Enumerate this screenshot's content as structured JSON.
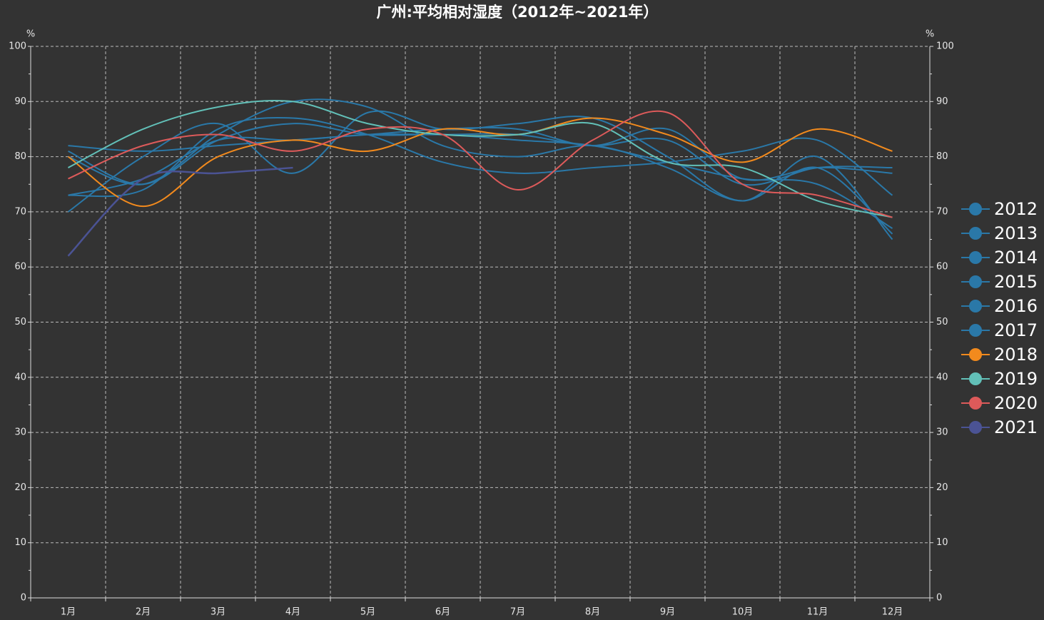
{
  "chart_data": {
    "type": "line",
    "title": "广州:平均相对湿度（2012年~2021年）",
    "categories": [
      "1月",
      "2月",
      "3月",
      "4月",
      "5月",
      "6月",
      "7月",
      "8月",
      "9月",
      "10月",
      "11月",
      "12月"
    ],
    "yname": "%",
    "y2name": "%",
    "ylim": [
      0,
      100
    ],
    "yticks": [
      0,
      10,
      20,
      30,
      40,
      50,
      60,
      70,
      80,
      90,
      100
    ],
    "y2lim": [
      0,
      100
    ],
    "y2ticks": [
      0,
      10,
      20,
      30,
      40,
      50,
      60,
      70,
      80,
      90,
      100
    ],
    "grid": true,
    "legend": "right",
    "smooth": true,
    "series": [
      {
        "name": "2012",
        "color": "#2a78a8",
        "values": [
          82,
          81,
          82,
          83,
          84,
          85,
          85,
          82,
          85,
          76,
          78,
          77
        ]
      },
      {
        "name": "2013",
        "color": "#2a78a8",
        "values": [
          80,
          75,
          84,
          90,
          89,
          82,
          80,
          82,
          78,
          72,
          78,
          66
        ]
      },
      {
        "name": "2014",
        "color": "#2a78a8",
        "values": [
          73,
          74,
          85,
          87,
          84,
          79,
          77,
          78,
          79,
          81,
          83,
          73
        ]
      },
      {
        "name": "2015",
        "color": "#2a78a8",
        "values": [
          70,
          80,
          86,
          77,
          88,
          85,
          86,
          87,
          80,
          72,
          80,
          65
        ]
      },
      {
        "name": "2016",
        "color": "#2a78a8",
        "values": [
          81,
          75,
          83,
          86,
          84,
          84,
          83,
          82,
          79,
          76,
          75,
          67
        ]
      },
      {
        "name": "2017",
        "color": "#2a78a8",
        "values": [
          73,
          76,
          83,
          83,
          84,
          84,
          84,
          82,
          83,
          75,
          78,
          78
        ]
      },
      {
        "name": "2018",
        "color": "#f28a1d",
        "values": [
          80,
          71,
          80,
          83,
          81,
          85,
          84,
          87,
          84,
          79,
          85,
          81
        ]
      },
      {
        "name": "2019",
        "color": "#62c0b8",
        "values": [
          78,
          85,
          89,
          90,
          86,
          84,
          84,
          86,
          79,
          78,
          72,
          69
        ]
      },
      {
        "name": "2020",
        "color": "#dd5a5a",
        "values": [
          76,
          82,
          84,
          81,
          85,
          84,
          74,
          83,
          88,
          75,
          73,
          69
        ]
      },
      {
        "name": "2021",
        "color": "#4b5394",
        "values": [
          62,
          76,
          77,
          78,
          null,
          null,
          null,
          null,
          null,
          null,
          null,
          null
        ]
      }
    ]
  }
}
